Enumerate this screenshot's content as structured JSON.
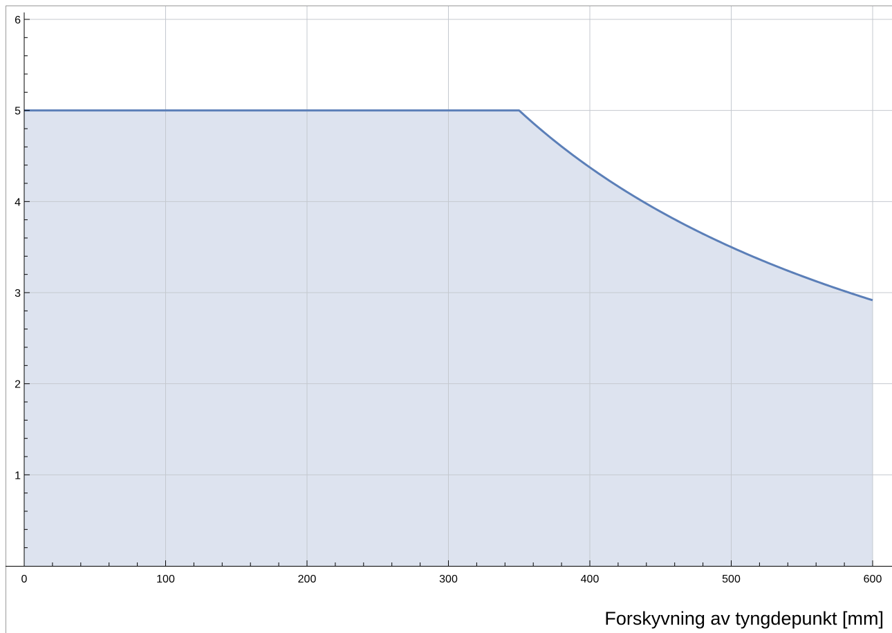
{
  "chart_data": {
    "type": "area",
    "title": "",
    "xlabel": "Forskyvning av tyngdepunkt [mm]",
    "ylabel": "",
    "xlim": [
      0,
      600
    ],
    "ylim": [
      0,
      6
    ],
    "x_ticks": [
      0,
      100,
      200,
      300,
      400,
      500,
      600
    ],
    "y_ticks": [
      1,
      2,
      3,
      4,
      5,
      6
    ],
    "x_tick_labels": [
      "0",
      "100",
      "200",
      "300",
      "400",
      "500",
      "600"
    ],
    "y_tick_labels": [
      "1",
      "2",
      "3",
      "4",
      "5",
      "6"
    ],
    "grid": true,
    "legend": "none",
    "series": [
      {
        "x": [
          0,
          100,
          200,
          300,
          350,
          375,
          400,
          425,
          450,
          475,
          500,
          525,
          550,
          575,
          600
        ],
        "values": [
          5,
          5,
          5,
          5,
          5,
          4.75,
          4.5,
          4.28,
          4.08,
          3.9,
          3.74,
          3.59,
          3.45,
          3.32,
          3.2
        ]
      }
    ],
    "colors": {
      "line": "#5b7fb8",
      "fill": "#dde3ef",
      "grid": "#c4c8cf",
      "axis": "#000000"
    }
  }
}
